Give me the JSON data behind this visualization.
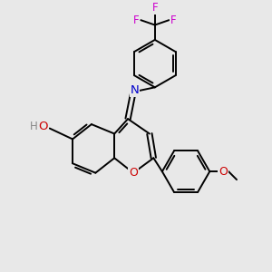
{
  "background_color": "#e8e8e8",
  "bond_color": "#000000",
  "bond_width": 1.4,
  "atom_colors": {
    "O": "#cc0000",
    "N": "#0000cc",
    "F": "#cc00cc",
    "H": "#888888"
  },
  "font_size": 8.5,
  "fig_width": 3.0,
  "fig_height": 3.0,
  "dpi": 100,
  "scale": 1.0
}
